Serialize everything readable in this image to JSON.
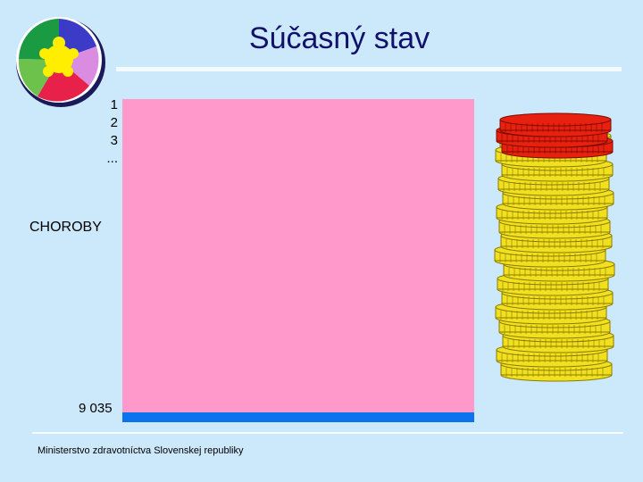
{
  "slide": {
    "title": "Súčasný stav",
    "rank_items": [
      "1",
      "2",
      "3",
      "..."
    ],
    "category_label": "CHOROBY",
    "count_label": "9 035",
    "footer": "Ministerstvo zdravotníctva Slovenskej republiky"
  },
  "colors": {
    "background": "#cce9fb",
    "title": "#13106b",
    "panel": "#ff99cc",
    "base_bar": "#0b73ee",
    "coin_gold": "#f0e020",
    "coin_red": "#e82010"
  },
  "icons": {
    "logo": "puzzle-circle-logo-icon",
    "coins": "coin-stack-icon"
  }
}
